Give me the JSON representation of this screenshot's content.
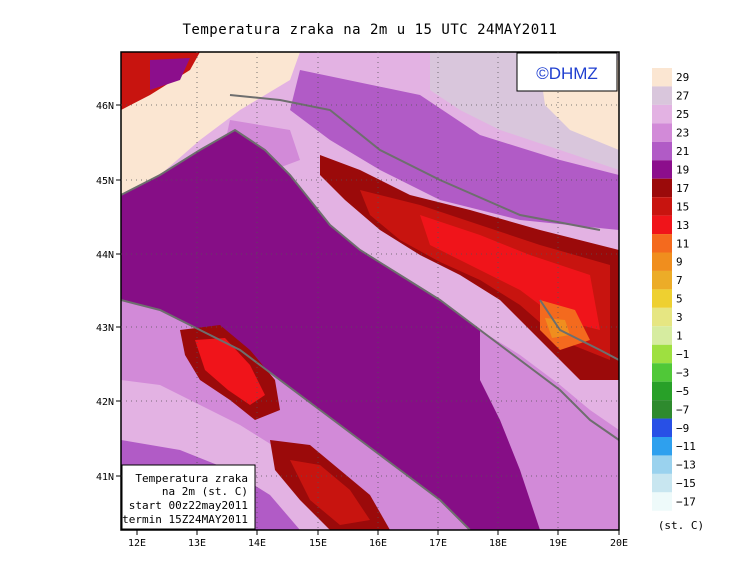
{
  "title": "Temperatura zraka na 2m u 15 UTC 24MAY2011",
  "logo": "©DHMZ",
  "info_box": {
    "line1": "Temperatura zraka",
    "line2": "na 2m (st. C)",
    "line3": "start 00z22may2011",
    "line4": "termin 15Z24MAY2011"
  },
  "lon_ticks": [
    "12E",
    "13E",
    "14E",
    "15E",
    "16E",
    "17E",
    "18E",
    "19E",
    "20E"
  ],
  "lat_ticks": [
    "46N",
    "45N",
    "44N",
    "43N",
    "42N",
    "41N"
  ],
  "legend": {
    "unit": "(st. C)",
    "labels": [
      "29",
      "27",
      "25",
      "23",
      "21",
      "19",
      "17",
      "15",
      "13",
      "11",
      "9",
      "7",
      "5",
      "3",
      "1",
      "−1",
      "−3",
      "−5",
      "−7",
      "−9",
      "−11",
      "−13",
      "−15",
      "−17"
    ],
    "colors": [
      "#fbe6d2",
      "#d9c6dc",
      "#e3b2e3",
      "#d28ad8",
      "#b15bc6",
      "#8c0e8c",
      "#9b0a0a",
      "#c8140f",
      "#f0141a",
      "#f46a1e",
      "#f08e1e",
      "#ecac28",
      "#eed030",
      "#e6e682",
      "#d6eca0",
      "#9ee040",
      "#50c838",
      "#28a028",
      "#2e8a2e",
      "#2850e6",
      "#2ea0ee",
      "#9ad2ee",
      "#c8e6f0",
      "#eefafa"
    ]
  },
  "colors": {
    "sea": "#860e86",
    "coast": "#6e6e6e"
  }
}
